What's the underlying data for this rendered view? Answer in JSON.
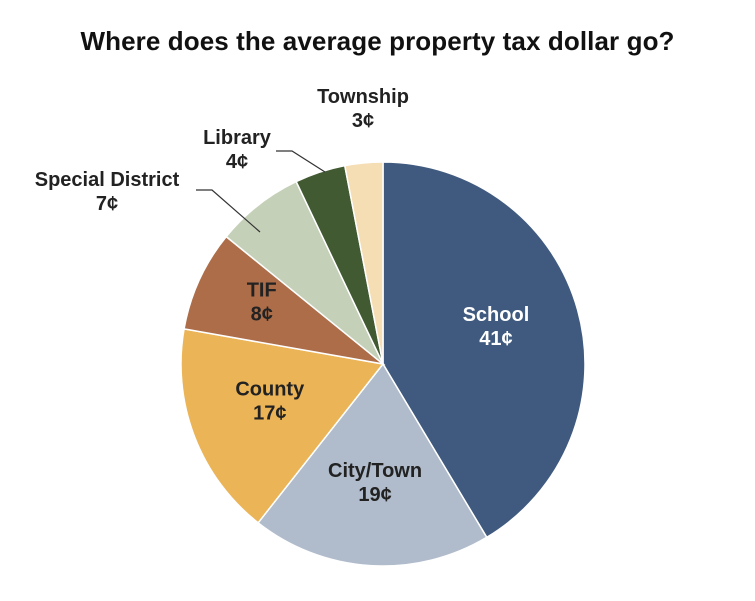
{
  "chart_data": {
    "type": "pie",
    "title": "Where does the average property tax dollar go?",
    "slices": [
      {
        "label": "School",
        "value": 41,
        "value_label": "41¢",
        "color": "#3f5a7e",
        "text_color": "#ffffff"
      },
      {
        "label": "City/Town",
        "value": 19,
        "value_label": "19¢",
        "color": "#b0bccb",
        "text_color": "#222222"
      },
      {
        "label": "County",
        "value": 17,
        "value_label": "17¢",
        "color": "#ebb457",
        "text_color": "#222222"
      },
      {
        "label": "TIF",
        "value": 8,
        "value_label": "8¢",
        "color": "#ad6d49",
        "text_color": "#222222"
      },
      {
        "label": "Special District",
        "value": 7,
        "value_label": "7¢",
        "color": "#c5d0b8",
        "text_color": "#222222"
      },
      {
        "label": "Library",
        "value": 4,
        "value_label": "4¢",
        "color": "#415a32",
        "text_color": "#222222"
      },
      {
        "label": "Township",
        "value": 3,
        "value_label": "3¢",
        "color": "#f5ddb4",
        "text_color": "#222222"
      }
    ]
  }
}
